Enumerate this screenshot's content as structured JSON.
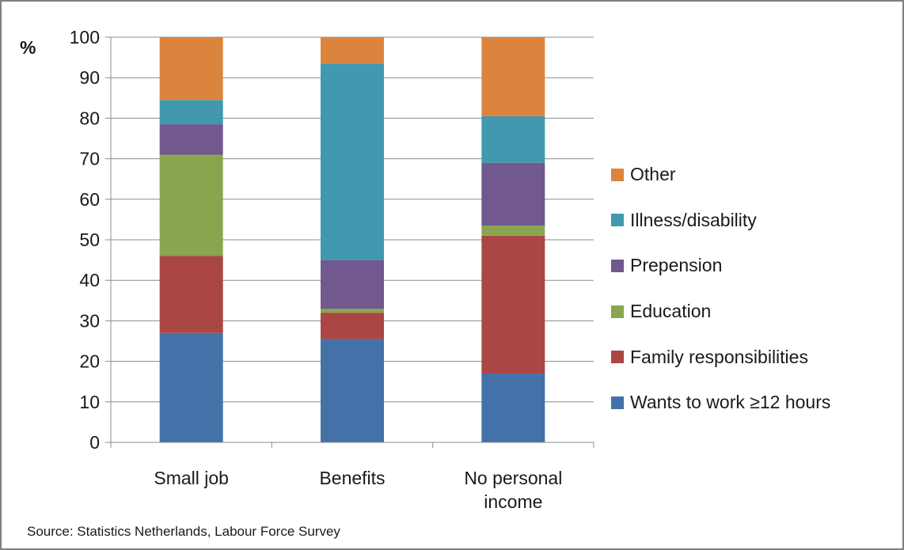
{
  "chart_data": {
    "type": "bar",
    "stacked": true,
    "ylabel": "%",
    "ylim": [
      0,
      100
    ],
    "yticks": [
      0,
      10,
      20,
      30,
      40,
      50,
      60,
      70,
      80,
      90,
      100
    ],
    "grid": true,
    "legend_position": "right",
    "categories": [
      [
        "Small job"
      ],
      [
        "Benefits"
      ],
      [
        "No personal",
        "income"
      ]
    ],
    "series": [
      {
        "name": "Wants to work ≥12 hours",
        "color": "#4472A8",
        "values": [
          27,
          25.5,
          17
        ]
      },
      {
        "name": "Family responsibilities",
        "color": "#AA4644",
        "values": [
          19,
          6.5,
          34
        ]
      },
      {
        "name": "Education",
        "color": "#89A54E",
        "values": [
          25,
          1,
          2.5
        ]
      },
      {
        "name": "Prepension",
        "color": "#71588F",
        "values": [
          7.5,
          12,
          15.5
        ]
      },
      {
        "name": "Illness/disability",
        "color": "#4198AF",
        "values": [
          6,
          48.5,
          11.5
        ]
      },
      {
        "name": "Other",
        "color": "#DB843D",
        "values": [
          15.5,
          6.5,
          19.5
        ]
      }
    ]
  },
  "source": "Source: Statistics Netherlands, Labour Force Survey"
}
